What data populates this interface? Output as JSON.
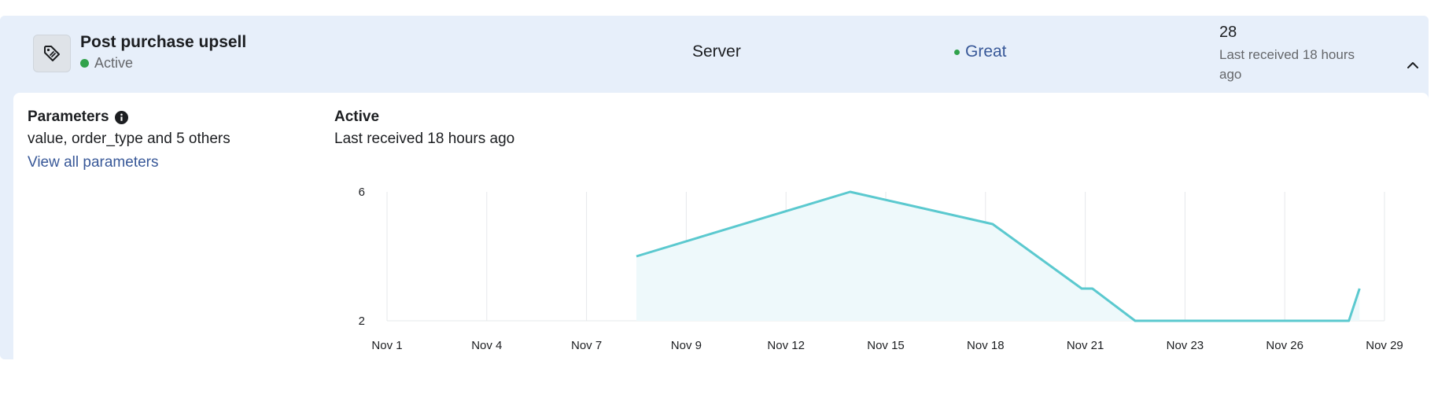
{
  "event": {
    "name": "Post purchase upsell",
    "status": "Active",
    "icon": "tag-icon",
    "method": "Server",
    "quality": "Great",
    "count": "28",
    "last_received": "Last received 18 hours ago"
  },
  "colors": {
    "card_bg": "#e7effa",
    "status_green": "#31a24c",
    "link_blue": "#385898",
    "line_teal": "#5bc9cf",
    "area_fill": "#eef9fb"
  },
  "parameters": {
    "title": "Parameters",
    "summary": "value, order_type and 5 others",
    "link": "View all parameters"
  },
  "chart": {
    "title": "Active",
    "subtitle": "Last received 18 hours ago"
  },
  "chart_data": {
    "type": "area",
    "title": "",
    "xlabel": "",
    "ylabel": "",
    "x_ticks": [
      "Nov 1",
      "Nov 4",
      "Nov 7",
      "Nov 9",
      "Nov 12",
      "Nov 15",
      "Nov 18",
      "Nov 21",
      "Nov 23",
      "Nov 26",
      "Nov 29"
    ],
    "y_ticks": [
      "6",
      "2"
    ],
    "ylim": [
      2,
      6
    ],
    "grid": "vertical",
    "series": [
      {
        "points": [
          {
            "x": "Nov 8",
            "y": 4
          },
          {
            "x": "Nov 14",
            "y": 6
          },
          {
            "x": "Nov 18",
            "y": 5
          },
          {
            "x": "Nov 20.5",
            "y": 3
          },
          {
            "x": "Nov 20.8",
            "y": 3
          },
          {
            "x": "Nov 22",
            "y": 2
          },
          {
            "x": "Nov 28",
            "y": 2
          },
          {
            "x": "Nov 28.3",
            "y": 3
          }
        ]
      }
    ]
  }
}
